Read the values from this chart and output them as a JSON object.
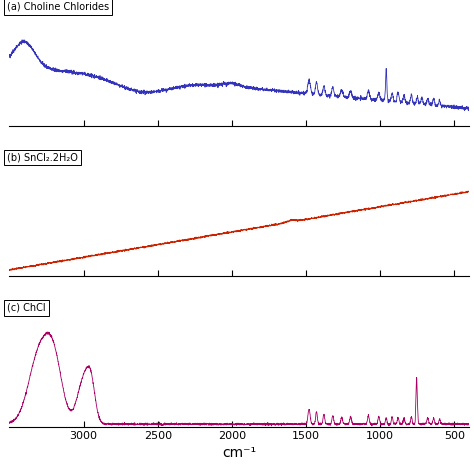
{
  "xlabel": "cm⁻¹",
  "xmin": 3500,
  "xmax": 400,
  "label_a": "(a) Choline Chlorides",
  "label_b": "(b) SnCl₂.2H₂O",
  "label_c": "(c) ChCl",
  "color_a": "#3333bb",
  "color_b": "#cc2200",
  "color_c": "#aa0066",
  "bg_color": "#ffffff",
  "linewidth": 0.6
}
